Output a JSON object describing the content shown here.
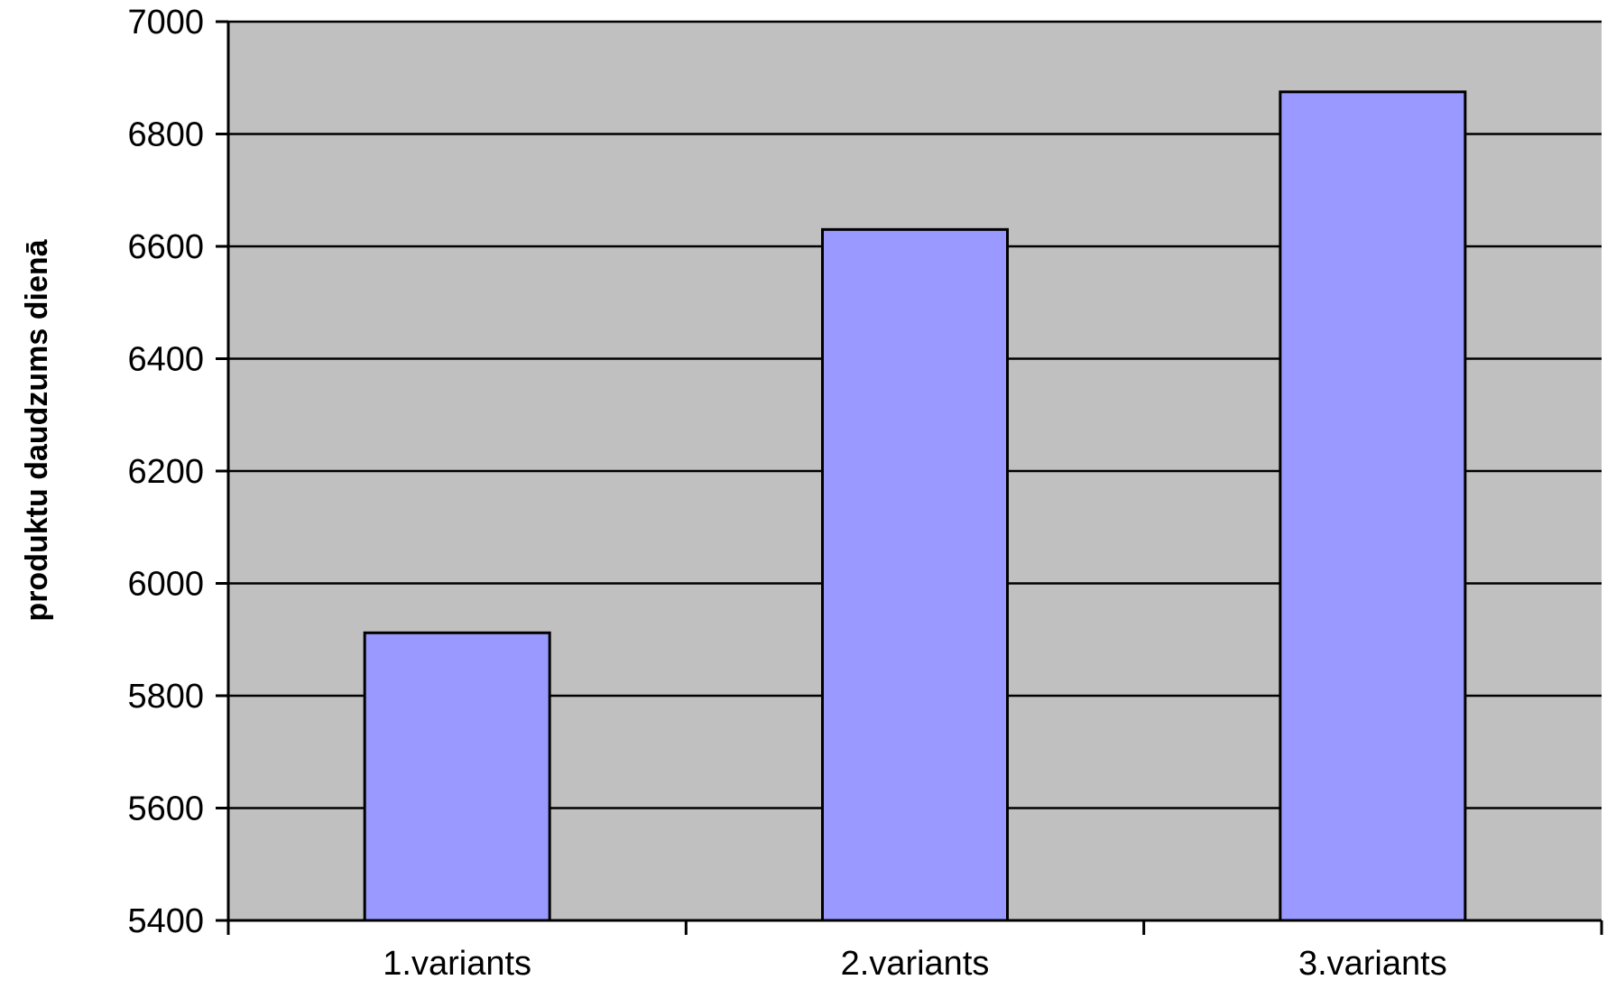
{
  "chart_data": {
    "type": "bar",
    "title": "",
    "xlabel": "",
    "ylabel": "produktu daudzums dienā",
    "categories": [
      "1.variants",
      "2.variants",
      "3.variants"
    ],
    "values": [
      5912,
      6630,
      6875
    ],
    "ylim": [
      5400,
      7000
    ],
    "yticks": [
      5400,
      5600,
      5800,
      6000,
      6200,
      6400,
      6600,
      6800,
      7000
    ],
    "grid": true,
    "legend": "none",
    "colors": {
      "plot_background": "#c0c0c0",
      "bar_fill": "#9999ff",
      "bar_stroke": "#000000",
      "gridline": "#000000"
    }
  }
}
